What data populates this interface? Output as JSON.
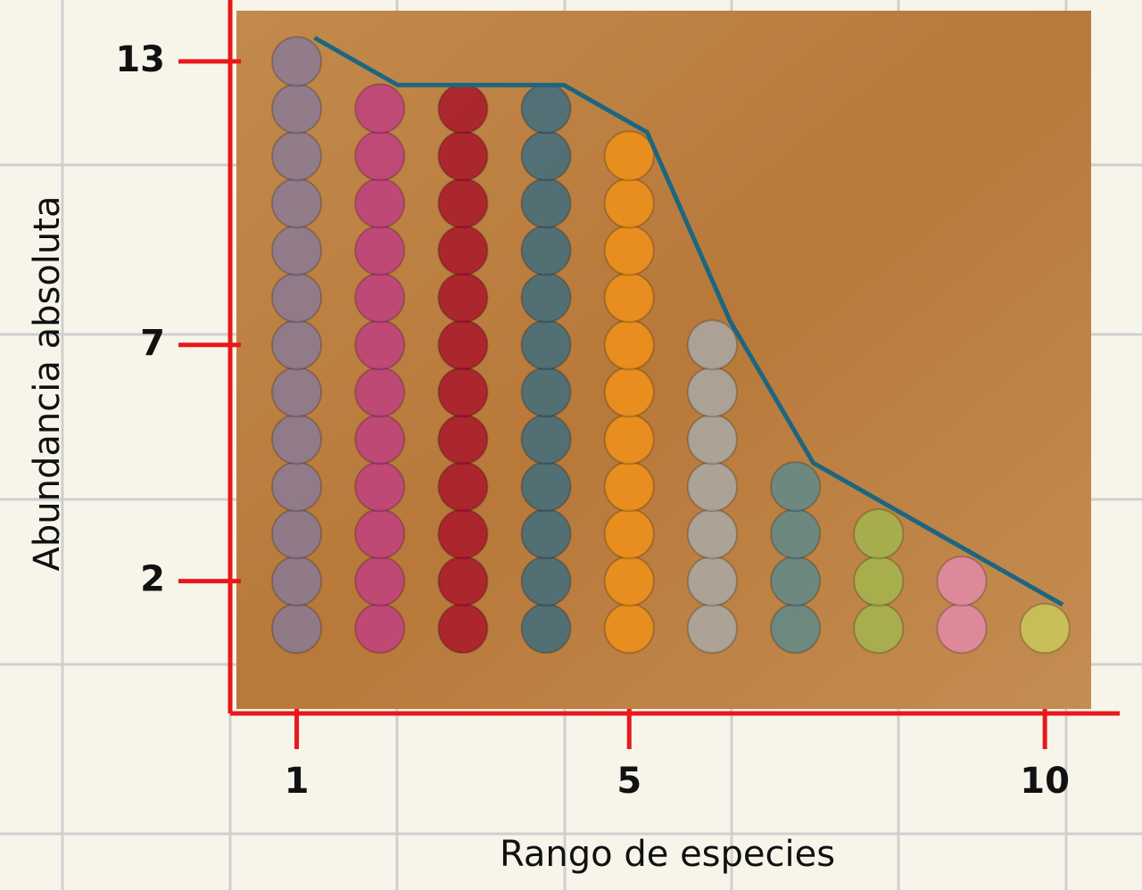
{
  "chart_data": {
    "type": "pictograph",
    "x_label": "Rango de especies",
    "y_label": "Abundancia absoluta",
    "x": [
      1,
      2,
      3,
      4,
      5,
      6,
      7,
      8,
      9,
      10
    ],
    "values": [
      13,
      12,
      12,
      12,
      11,
      7,
      4,
      3,
      2,
      1
    ],
    "colors": [
      "#8a7a95",
      "#c0407f",
      "#a8182a",
      "#3f6d7e",
      "#f0901a",
      "#a9a8a4",
      "#5f8a88",
      "#a3b54e",
      "#e389a8",
      "#c9c85a"
    ],
    "line_color": "#1d6680",
    "axis_color": "#e8181c",
    "xlim": [
      0.2,
      10.9
    ],
    "xticks": [
      1,
      5,
      10
    ],
    "ylim": [
      -0.8,
      14.3
    ],
    "yticks": [
      2,
      7,
      13
    ]
  }
}
